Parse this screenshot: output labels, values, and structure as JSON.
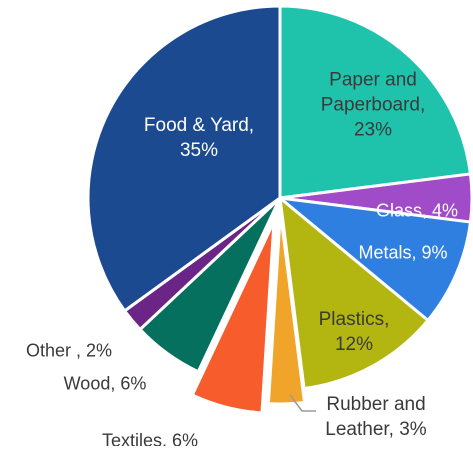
{
  "chart_data": {
    "type": "pie",
    "title": "",
    "legend": "none",
    "slices": [
      {
        "name": "Paper and Paperboard",
        "value": 23,
        "value_label": "23%",
        "label_lines": [
          "Paper and",
          "Paperboard,",
          "23%"
        ],
        "color": "#1FC3AC",
        "text_color": "#3a3a3a"
      },
      {
        "name": "Glass",
        "value": 4,
        "value_label": "4%",
        "label_lines": [
          "Glass, 4%"
        ],
        "color": "#A04BC8",
        "text_color": "#ffffff"
      },
      {
        "name": "Metals",
        "value": 9,
        "value_label": "9%",
        "label_lines": [
          "Metals, 9%"
        ],
        "color": "#2F7FE0",
        "text_color": "#ffffff"
      },
      {
        "name": "Plastics",
        "value": 12,
        "value_label": "12%",
        "label_lines": [
          "Plastics,",
          "12%"
        ],
        "color": "#B3B511",
        "text_color": "#3a3a3a"
      },
      {
        "name": "Rubber and Leather",
        "value": 3,
        "value_label": "3%",
        "label_lines": [
          "Rubber and",
          "Leather, 3%"
        ],
        "color": "#F0A52A",
        "text_color": "#3a3a3a"
      },
      {
        "name": "Textiles",
        "value": 6,
        "value_label": "6%",
        "label_lines": [
          "Textiles, 6%"
        ],
        "color": "#F75C2C",
        "text_color": "#3a3a3a"
      },
      {
        "name": "Wood",
        "value": 6,
        "value_label": "6%",
        "label_lines": [
          "Wood, 6%"
        ],
        "color": "#06705F",
        "text_color": "#3a3a3a"
      },
      {
        "name": "Other",
        "value": 2,
        "value_label": "2%",
        "label_lines": [
          "Other , 2%"
        ],
        "color": "#6B2587",
        "text_color": "#3a3a3a"
      },
      {
        "name": "Food & Yard",
        "value": 35,
        "value_label": "35%",
        "label_lines": [
          "Food & Yard,",
          "35%"
        ],
        "color": "#1B4A91",
        "text_color": "#ffffff"
      }
    ]
  }
}
